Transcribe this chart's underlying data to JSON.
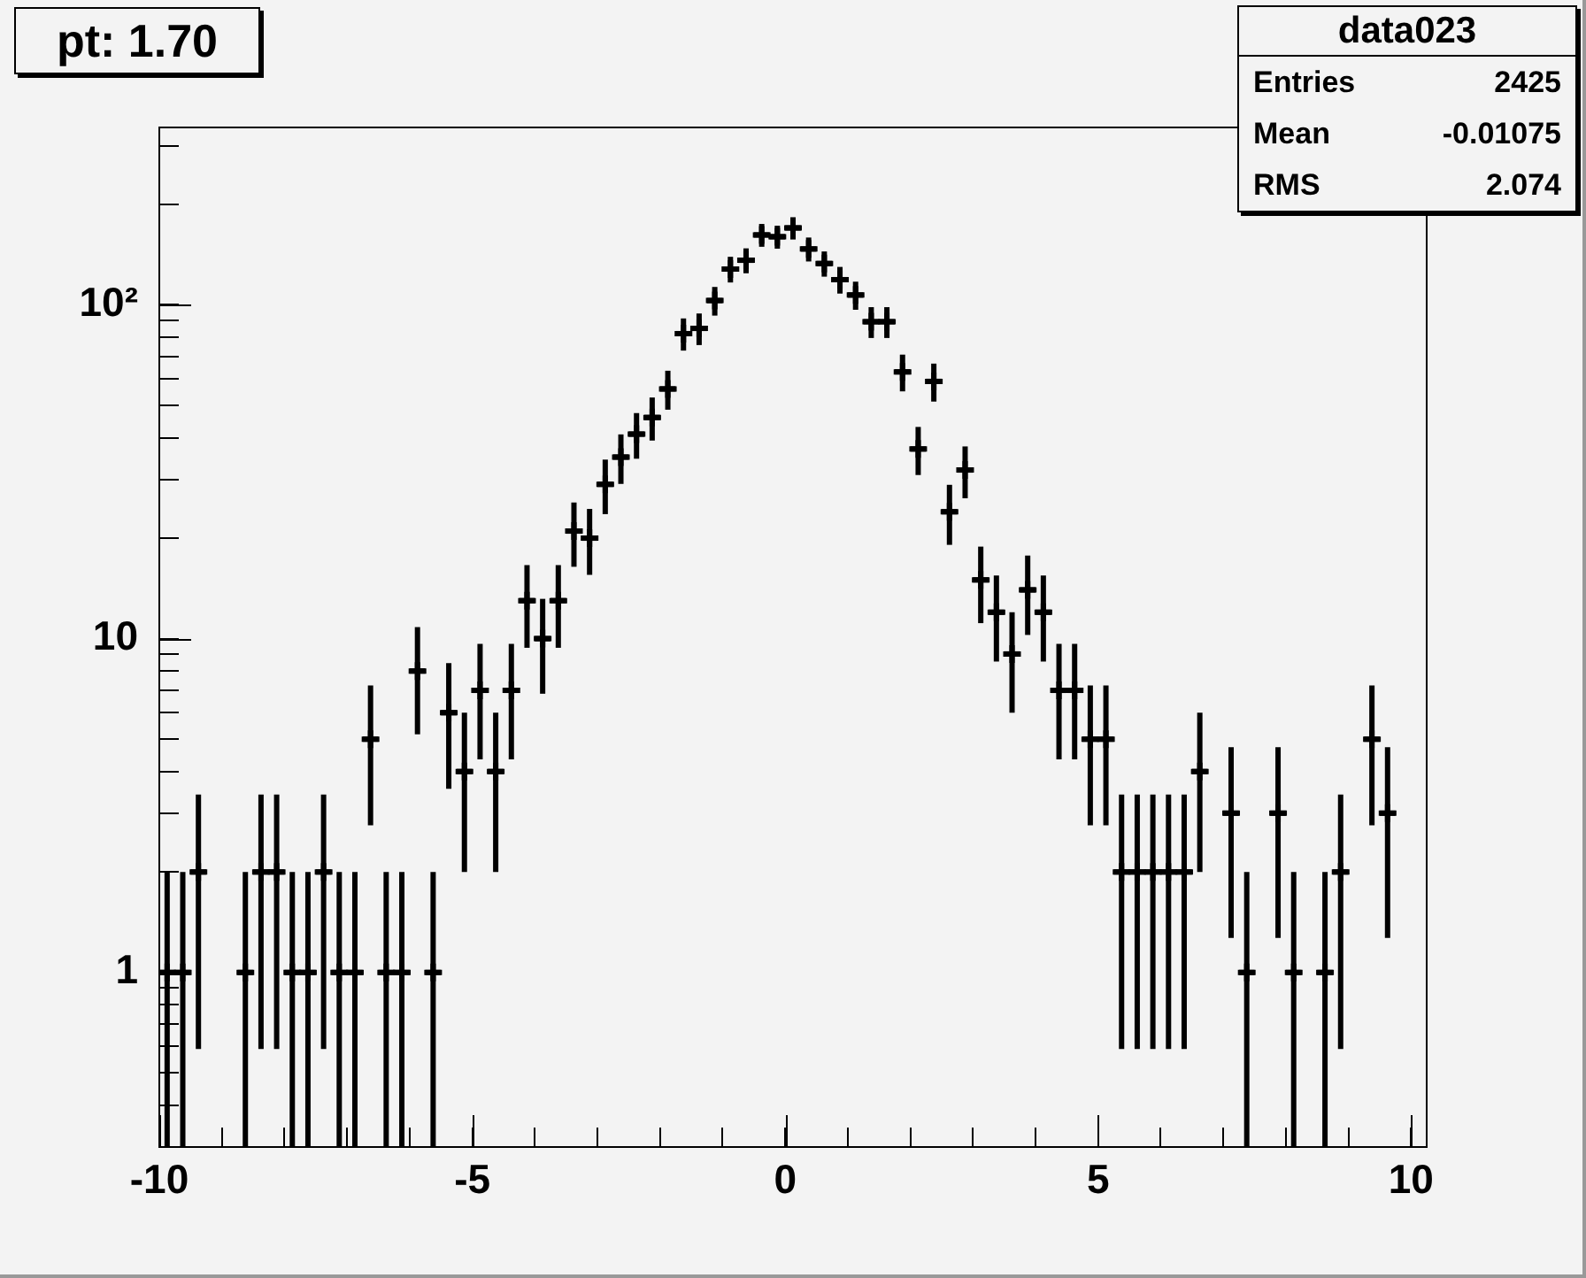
{
  "chart_data": {
    "type": "scatter",
    "title": "pt: 1.70",
    "annotations": [
      "data023",
      "Entries",
      "2425",
      "Mean",
      "-0.01075",
      "RMS",
      "2.074"
    ],
    "x": [
      -9.875,
      -9.625,
      -9.375,
      -9.125,
      -8.875,
      -8.625,
      -8.375,
      -8.125,
      -7.875,
      -7.625,
      -7.375,
      -7.125,
      -6.875,
      -6.625,
      -6.375,
      -6.125,
      -5.875,
      -5.625,
      -5.375,
      -5.125,
      -4.875,
      -4.625,
      -4.375,
      -4.125,
      -3.875,
      -3.625,
      -3.375,
      -3.125,
      -2.875,
      -2.625,
      -2.375,
      -2.125,
      -1.875,
      -1.625,
      -1.375,
      -1.125,
      -0.875,
      -0.625,
      -0.375,
      -0.125,
      0.125,
      0.375,
      0.625,
      0.875,
      1.125,
      1.375,
      1.625,
      1.875,
      2.125,
      2.375,
      2.625,
      2.875,
      3.125,
      3.375,
      3.625,
      3.875,
      4.125,
      4.375,
      4.625,
      4.875,
      5.125,
      5.375,
      5.625,
      5.875,
      6.125,
      6.375,
      6.625,
      6.875,
      7.125,
      7.375,
      7.625,
      7.875,
      8.125,
      8.375,
      8.625,
      8.875,
      9.125,
      9.375,
      9.625
    ],
    "values": [
      1,
      1,
      2,
      null,
      null,
      1,
      2,
      2,
      1,
      1,
      2,
      1,
      1,
      5,
      1,
      1,
      8,
      1,
      6,
      4,
      7,
      4,
      7,
      13,
      10,
      13,
      21,
      20,
      29,
      35,
      41,
      46,
      56,
      82,
      85,
      103,
      128,
      136,
      162,
      160,
      170,
      147,
      133,
      119,
      107,
      89,
      89,
      63,
      37,
      59,
      24,
      32,
      15,
      12,
      9,
      14,
      12,
      7,
      7,
      5,
      5,
      2,
      2,
      2,
      2,
      2,
      4,
      null,
      3,
      1,
      null,
      3,
      1,
      null,
      1,
      2,
      null,
      5,
      3
    ],
    "errors": [
      [
        0.3,
        2
      ],
      [
        0.3,
        2
      ],
      1.41,
      null,
      null,
      [
        0.3,
        2
      ],
      1.41,
      1.41,
      [
        0.3,
        2
      ],
      [
        0.3,
        2
      ],
      1.41,
      [
        0.3,
        2
      ],
      [
        0.3,
        2
      ],
      2.24,
      [
        0.3,
        2
      ],
      [
        0.3,
        2
      ],
      2.83,
      [
        0.3,
        2
      ],
      2.45,
      2,
      2.65,
      2,
      2.65,
      3.61,
      3.16,
      3.61,
      4.58,
      4.47,
      5.39,
      5.92,
      6.4,
      6.78,
      7.48,
      9.06,
      9.22,
      10.15,
      11.31,
      11.66,
      12.73,
      12.65,
      13.04,
      12.12,
      11.53,
      10.91,
      10.34,
      9.43,
      9.43,
      7.94,
      6.08,
      7.68,
      4.9,
      5.66,
      3.87,
      3.46,
      3,
      3.74,
      3.46,
      2.65,
      2.65,
      2.24,
      2.24,
      1.41,
      1.41,
      1.41,
      1.41,
      1.41,
      2,
      null,
      1.73,
      [
        0.3,
        2
      ],
      null,
      1.73,
      [
        0.3,
        2
      ],
      null,
      [
        0.3,
        2
      ],
      1.41,
      null,
      2.24,
      1.73
    ],
    "xerrors": [
      0.125,
      0.125,
      0.125,
      null,
      null,
      0.125,
      0.125,
      0.125,
      0.125,
      0.125,
      0.125,
      0.125,
      0.125,
      0.125,
      0.125,
      0.125,
      0.125,
      0.125,
      0.125,
      0.125,
      0.125,
      0.125,
      0.125,
      0.125,
      0.125,
      0.125,
      0.125,
      0.125,
      0.125,
      0.125,
      0.125,
      0.125,
      0.125,
      0.125,
      0.125,
      0.125,
      0.125,
      0.125,
      0.125,
      0.125,
      0.125,
      0.125,
      0.125,
      0.125,
      0.125,
      0.125,
      0.125,
      0.125,
      0.125,
      0.125,
      0.125,
      0.125,
      0.125,
      0.125,
      0.125,
      0.125,
      0.125,
      0.125,
      0.125,
      0.125,
      0.125,
      0.125,
      0.125,
      0.125,
      0.125,
      0.125,
      0.125,
      null,
      0.125,
      0.125,
      null,
      0.125,
      0.125,
      null,
      0.125,
      0.125,
      null,
      0.125,
      0.125
    ],
    "color": "#000000",
    "marker": "cross",
    "log": "y",
    "xlim": [
      -10,
      10.25
    ],
    "xticks": [
      -10,
      {
        "value": -9,
        "label": null
      },
      {
        "value": -8,
        "label": null
      },
      {
        "value": -7,
        "label": null
      },
      {
        "value": -6,
        "label": null
      },
      -5,
      {
        "value": -4,
        "label": null
      },
      {
        "value": -3,
        "label": null
      },
      {
        "value": -2,
        "label": null
      },
      {
        "value": -1,
        "label": null
      },
      0,
      {
        "value": 1,
        "label": null
      },
      {
        "value": 2,
        "label": null
      },
      {
        "value": 3,
        "label": null
      },
      {
        "value": 4,
        "label": null
      },
      5,
      {
        "value": 6,
        "label": null
      },
      {
        "value": 7,
        "label": null
      },
      {
        "value": 8,
        "label": null
      },
      {
        "value": 9,
        "label": null
      },
      10
    ],
    "ylim": [
      0.3,
      340
    ],
    "yticks": [
      {
        "value": 0.3,
        "label": null
      },
      {
        "value": 0.4,
        "label": null
      },
      {
        "value": 0.5,
        "label": null
      },
      {
        "value": 0.6,
        "label": null
      },
      {
        "value": 0.7,
        "label": null
      },
      {
        "value": 0.8,
        "label": null
      },
      {
        "value": 0.9,
        "label": null
      },
      1,
      {
        "value": 2,
        "label": null
      },
      {
        "value": 3,
        "label": null
      },
      {
        "value": 4,
        "label": null
      },
      {
        "value": 5,
        "label": null
      },
      {
        "value": 6,
        "label": null
      },
      {
        "value": 7,
        "label": null
      },
      {
        "value": 8,
        "label": null
      },
      {
        "value": 9,
        "label": null
      },
      10,
      {
        "value": 20,
        "label": null
      },
      {
        "value": 30,
        "label": null
      },
      {
        "value": 40,
        "label": null
      },
      {
        "value": 50,
        "label": null
      },
      {
        "value": 60,
        "label": null
      },
      {
        "value": 70,
        "label": null
      },
      {
        "value": 80,
        "label": null
      },
      {
        "value": 90,
        "label": null
      },
      {
        "value": 100,
        "label": "10²"
      },
      {
        "value": 200,
        "label": null
      },
      {
        "value": 300,
        "label": null
      }
    ]
  }
}
